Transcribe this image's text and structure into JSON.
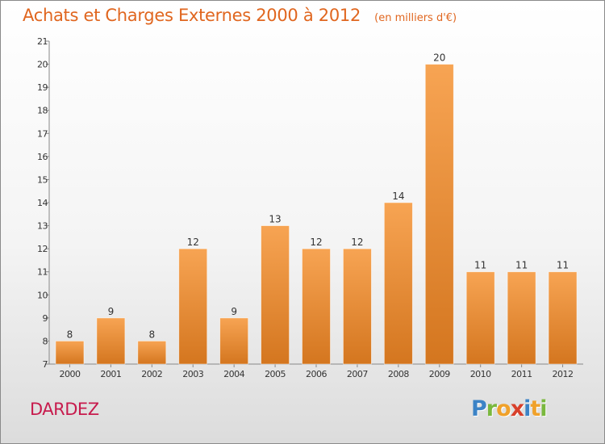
{
  "chart_data": {
    "type": "bar",
    "title": "Achats et Charges Externes 2000 à 2012",
    "unit": "(en milliers d'€)",
    "categories": [
      "2000",
      "2001",
      "2002",
      "2003",
      "2004",
      "2005",
      "2006",
      "2007",
      "2008",
      "2009",
      "2010",
      "2011",
      "2012"
    ],
    "values": [
      8,
      9,
      8,
      12,
      9,
      13,
      12,
      12,
      14,
      20,
      11,
      11,
      11
    ],
    "ylim": [
      7,
      21
    ],
    "yticks": [
      7,
      8,
      9,
      10,
      11,
      12,
      13,
      14,
      15,
      16,
      17,
      18,
      19,
      20,
      21
    ],
    "grid": false,
    "bar_color_top": "#f7a453",
    "bar_color_bottom": "#d4761f"
  },
  "commune": "DARDEZ",
  "logo": {
    "letters": [
      "P",
      "r",
      "o",
      "x",
      "i",
      "t",
      "i"
    ],
    "colors": [
      "#3c83c6",
      "#7ab83e",
      "#f0a12a",
      "#d8402b",
      "#3c83c6",
      "#f0a12a",
      "#7ab83e"
    ]
  }
}
